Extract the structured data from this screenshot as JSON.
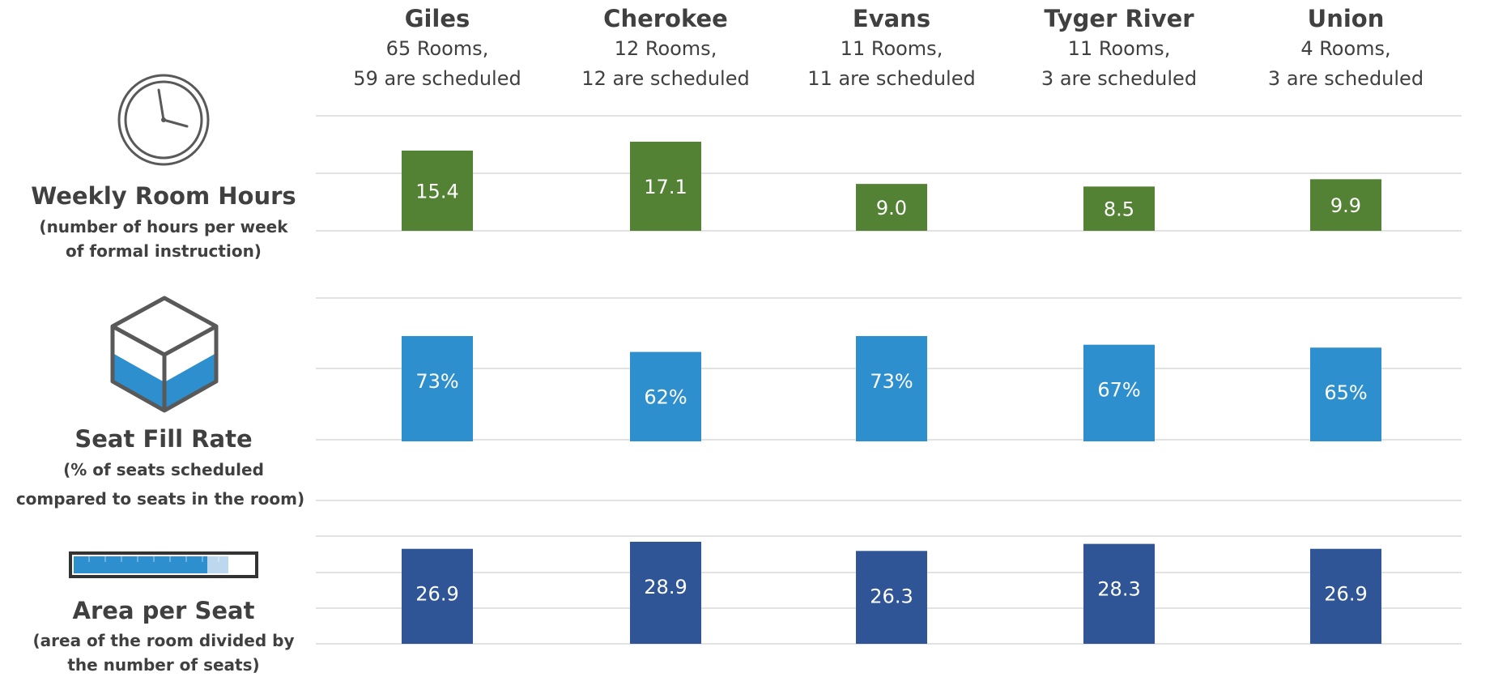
{
  "columns": [
    {
      "name": "Giles",
      "rooms": "65 Rooms,",
      "scheduled": "59 are scheduled"
    },
    {
      "name": "Cherokee",
      "rooms": "12 Rooms,",
      "scheduled": "12 are scheduled"
    },
    {
      "name": "Evans",
      "rooms": "11 Rooms,",
      "scheduled": "11 are scheduled"
    },
    {
      "name": "Tyger River",
      "rooms": "11 Rooms,",
      "scheduled": "3 are scheduled"
    },
    {
      "name": "Union",
      "rooms": "4 Rooms,",
      "scheduled": "3 are scheduled"
    }
  ],
  "metrics": [
    {
      "title": "Weekly Room Hours",
      "sub1": "(number of hours per week",
      "sub2": "of formal instruction)",
      "icon": "clock-icon"
    },
    {
      "title": "Seat Fill Rate",
      "sub1": "(% of seats scheduled",
      "sub2": "compared to seats in the room)",
      "icon": "filled-cube-icon"
    },
    {
      "title": "Area per Seat",
      "sub1": "(area of the room divided by",
      "sub2": "the number of seats)",
      "icon": "area-bar-icon"
    }
  ],
  "colors": {
    "weekly_hours": "#548235",
    "seat_fill": "#2e8fce",
    "area_per_seat": "#2f5597",
    "text": "#404040",
    "grid": "#d9d9d9"
  },
  "chart_data": [
    {
      "type": "bar",
      "categories": [
        "Giles",
        "Cherokee",
        "Evans",
        "Tyger River",
        "Union"
      ],
      "values": [
        15.4,
        17.1,
        9.0,
        8.5,
        9.9
      ],
      "labels": [
        "15.4",
        "17.1",
        "9.0",
        "8.5",
        "9.9"
      ],
      "title": "Weekly Room Hours",
      "ylim": [
        0,
        18
      ],
      "grid": true
    },
    {
      "type": "bar",
      "categories": [
        "Giles",
        "Cherokee",
        "Evans",
        "Tyger River",
        "Union"
      ],
      "values": [
        73,
        62,
        73,
        67,
        65
      ],
      "labels": [
        "73%",
        "62%",
        "73%",
        "67%",
        "65%"
      ],
      "title": "Seat Fill Rate",
      "ylim": [
        0,
        100
      ],
      "grid": true
    },
    {
      "type": "bar",
      "categories": [
        "Giles",
        "Cherokee",
        "Evans",
        "Tyger River",
        "Union"
      ],
      "values": [
        26.9,
        28.9,
        26.3,
        28.3,
        26.9
      ],
      "labels": [
        "26.9",
        "28.9",
        "26.3",
        "28.3",
        "26.9"
      ],
      "title": "Area per Seat",
      "ylim": [
        0,
        30
      ],
      "grid": true
    }
  ]
}
